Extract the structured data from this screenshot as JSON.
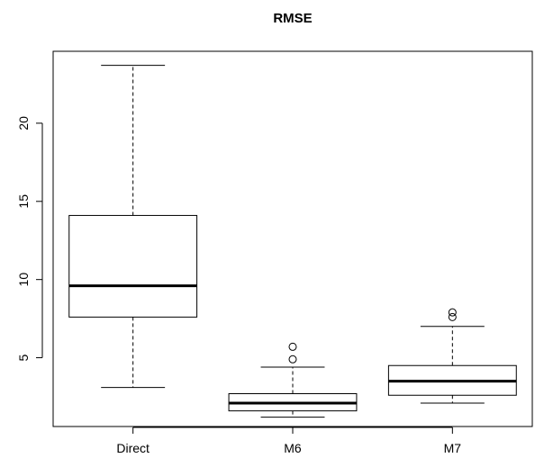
{
  "chart_data": {
    "type": "boxplot",
    "title": "RMSE",
    "xlabel": "",
    "ylabel": "",
    "categories": [
      "Direct",
      "M6",
      "M7"
    ],
    "yticks": [
      5,
      10,
      15,
      20
    ],
    "ylim": [
      0.6,
      24.6
    ],
    "grid": false,
    "legend": "none",
    "boxes": [
      {
        "name": "Direct",
        "whisker_low": 3.1,
        "q1": 7.6,
        "median": 9.6,
        "q3": 14.1,
        "whisker_high": 23.7,
        "outliers": []
      },
      {
        "name": "M6",
        "whisker_low": 1.2,
        "q1": 1.6,
        "median": 2.1,
        "q3": 2.7,
        "whisker_high": 4.4,
        "outliers": [
          4.9,
          5.7
        ]
      },
      {
        "name": "M7",
        "whisker_low": 2.1,
        "q1": 2.6,
        "median": 3.5,
        "q3": 4.5,
        "whisker_high": 7.0,
        "outliers": [
          7.6,
          7.9
        ]
      }
    ]
  }
}
